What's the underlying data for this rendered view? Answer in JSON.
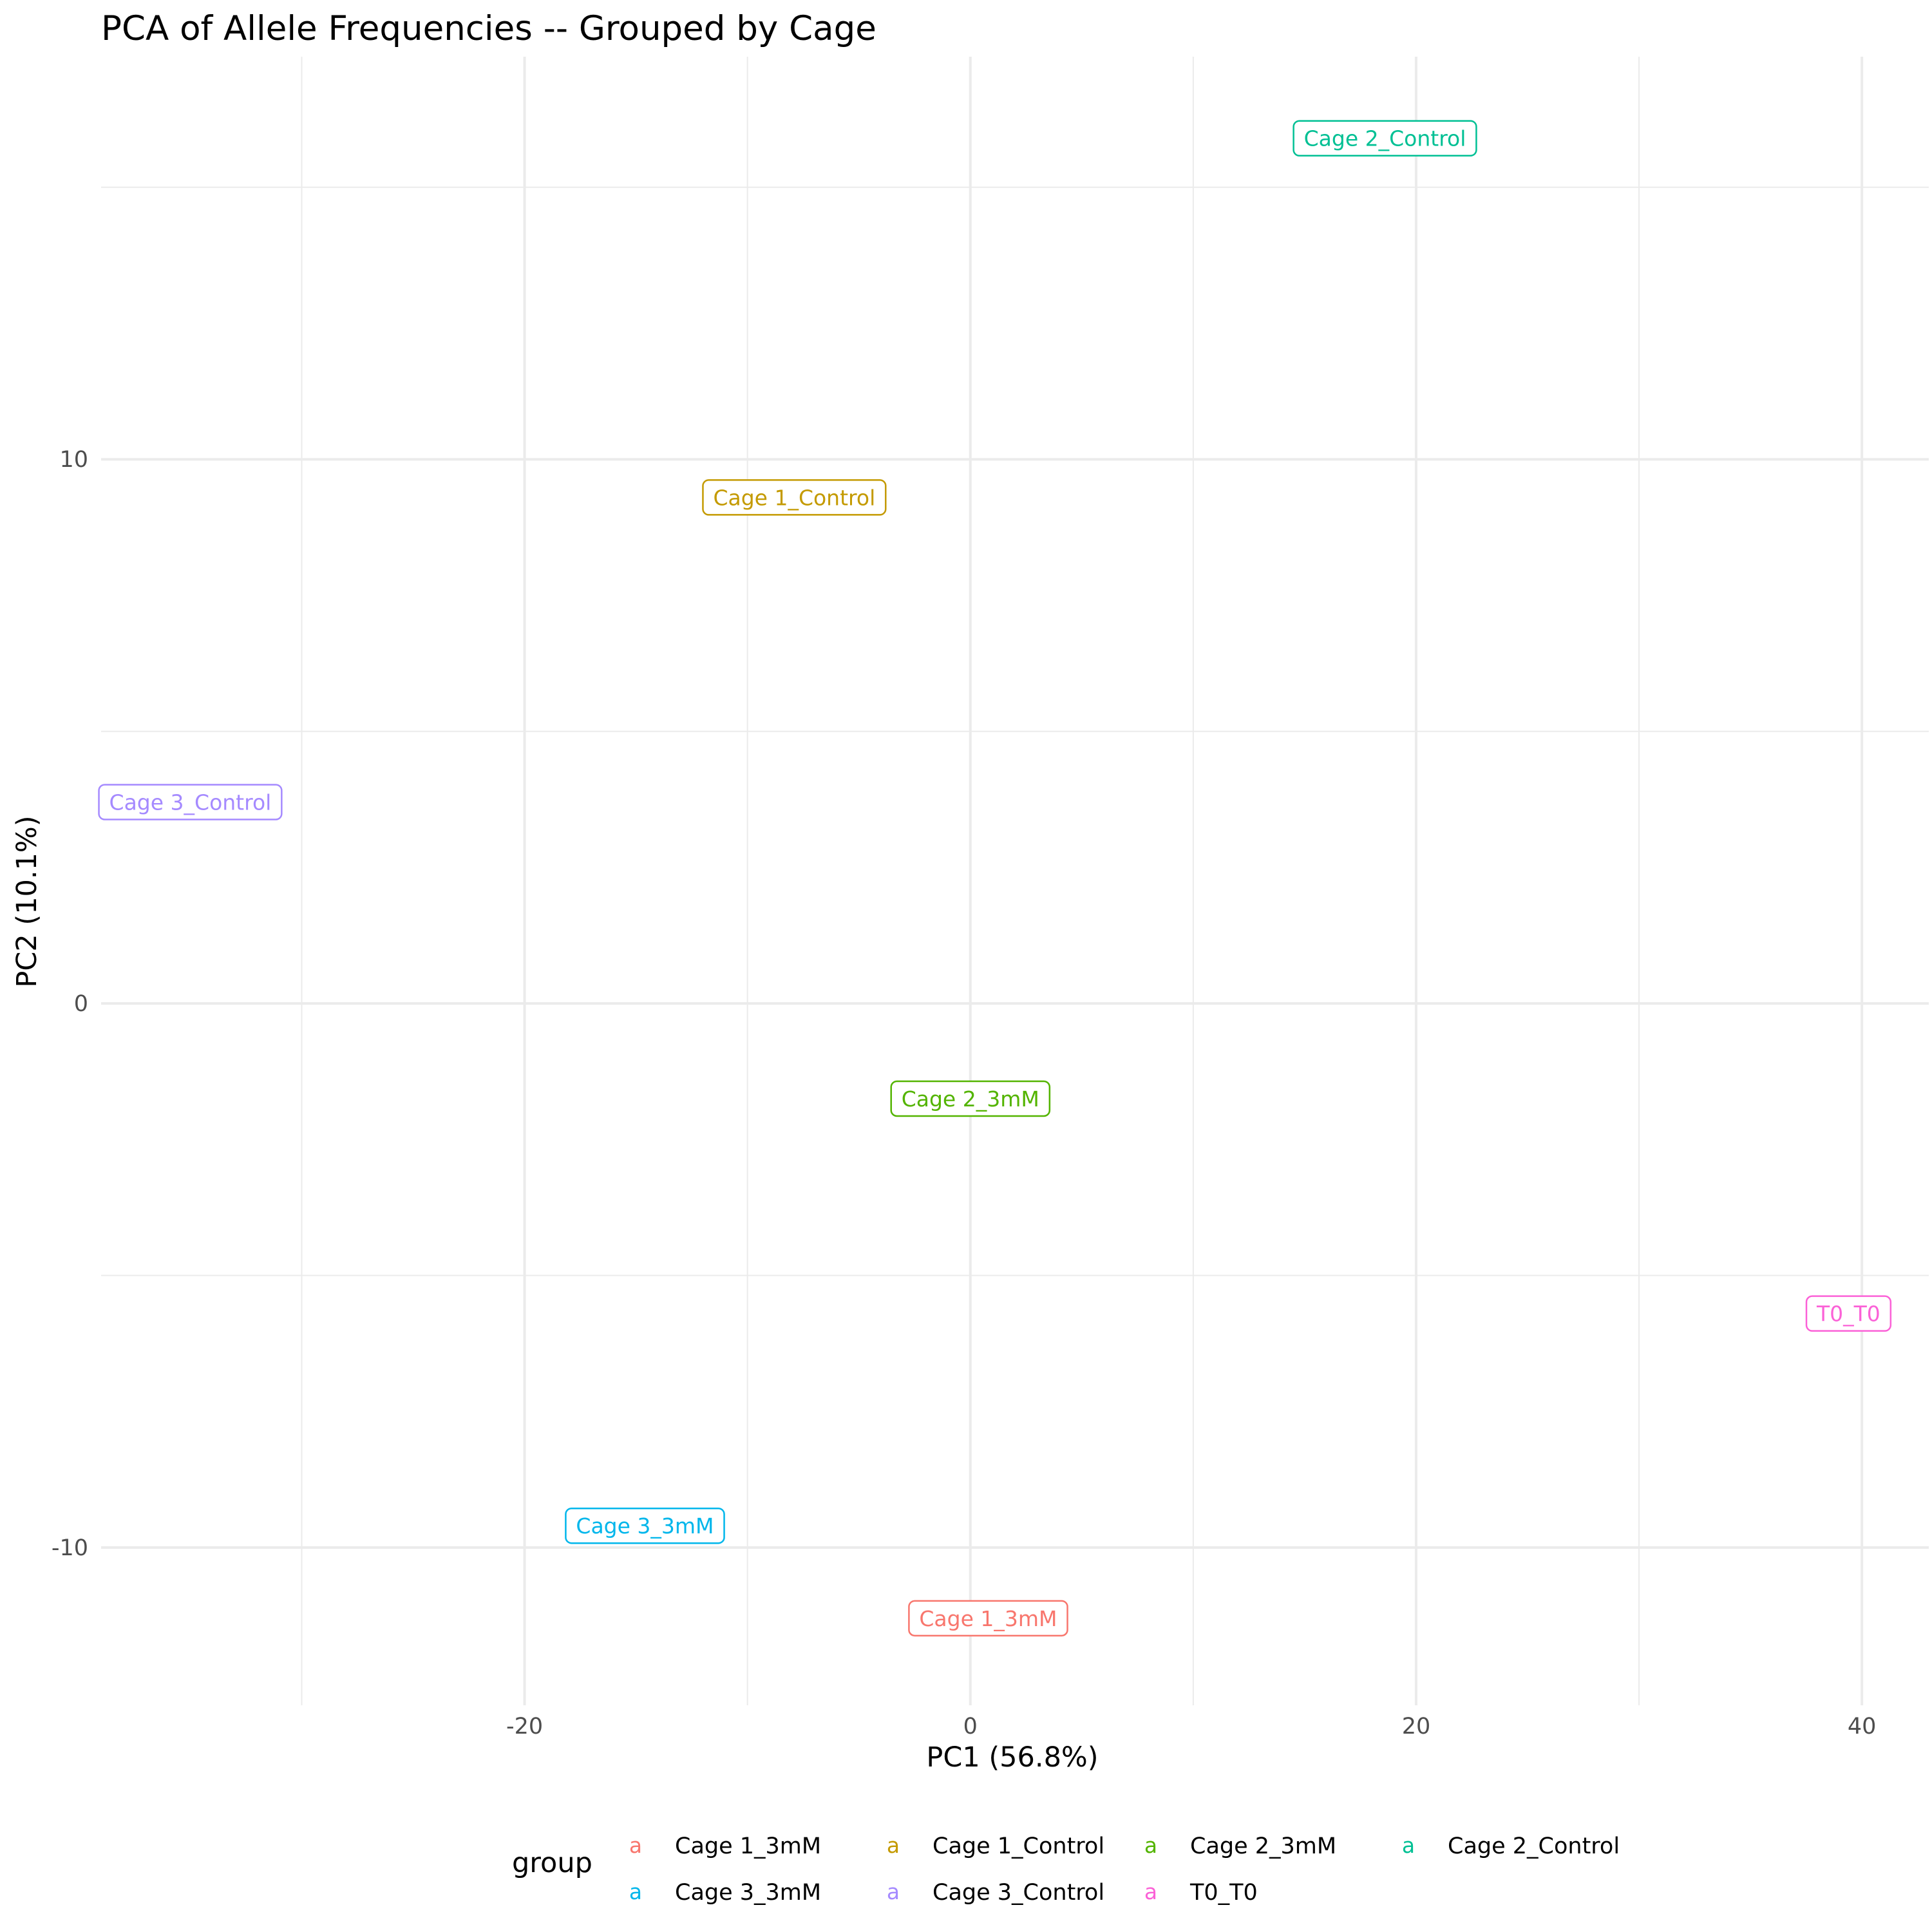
{
  "chart_data": {
    "type": "scatter",
    "title": "PCA of Allele Frequencies -- Grouped by Cage",
    "xlabel": "PC1 (56.8%)",
    "ylabel": "PC2 (10.1%)",
    "xlim": [
      -39,
      43
    ],
    "ylim": [
      -12.9,
      17.4
    ],
    "x_ticks": [
      -20,
      0,
      20,
      40
    ],
    "x_tick_labels": [
      "-20",
      "0",
      "20",
      "40"
    ],
    "y_ticks": [
      -10,
      0,
      10
    ],
    "y_tick_labels": [
      "-10",
      "0",
      "10"
    ],
    "x_minor_ticks": [
      -30,
      -10,
      10,
      30
    ],
    "y_minor_ticks": [
      -5,
      5,
      15
    ],
    "grid": true,
    "legend": {
      "title": "group",
      "position": "bottom",
      "key_glyph": "a"
    },
    "series": [
      {
        "name": "Cage 1_3mM",
        "color": "#F8766D",
        "x": 0.8,
        "y": -11.3,
        "label": "Cage 1_3mM"
      },
      {
        "name": "Cage 1_Control",
        "color": "#C49A00",
        "x": -7.9,
        "y": 9.3,
        "label": "Cage 1_Control"
      },
      {
        "name": "Cage 2_3mM",
        "color": "#53B400",
        "x": 0.0,
        "y": -1.75,
        "label": "Cage 2_3mM"
      },
      {
        "name": "Cage 2_Control",
        "color": "#00C094",
        "x": 18.6,
        "y": 15.9,
        "label": "Cage 2_Control"
      },
      {
        "name": "Cage 3_3mM",
        "color": "#00B6EB",
        "x": -14.6,
        "y": -9.6,
        "label": "Cage 3_3mM"
      },
      {
        "name": "Cage 3_Control",
        "color": "#A58AFF",
        "x": -35.0,
        "y": 3.7,
        "label": "Cage 3_Control"
      },
      {
        "name": "T0_T0",
        "color": "#FB61D7",
        "x": 39.4,
        "y": -5.7,
        "label": "T0_T0"
      }
    ]
  }
}
